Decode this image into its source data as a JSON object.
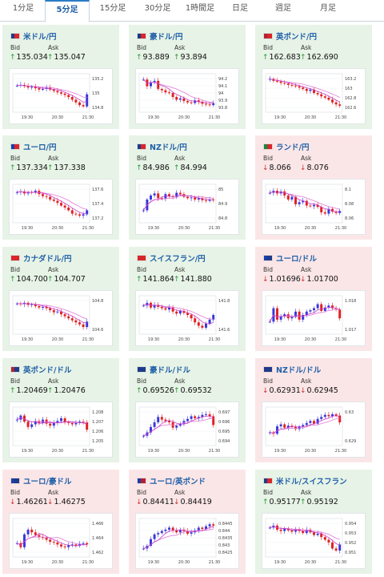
{
  "tabs": [
    {
      "label": "1分足",
      "active": false
    },
    {
      "label": "5分足",
      "active": true
    },
    {
      "label": "15分足",
      "active": false
    },
    {
      "label": "30分足",
      "active": false
    },
    {
      "label": "1時間足",
      "active": false
    },
    {
      "label": "日足",
      "active": false
    },
    {
      "label": "週足",
      "active": false
    },
    {
      "label": "月足",
      "active": false
    }
  ],
  "labels": {
    "bid": "Bid",
    "ask": "Ask"
  },
  "colors": {
    "up": "#2b9a3d",
    "down": "#d02f2f",
    "ma": "#c83cc8",
    "ma2": "#e07ad8",
    "bull": "#3838d8",
    "bear": "#e02020"
  },
  "x_ticks": [
    "19:30",
    "20:30",
    "21:30"
  ],
  "pairs": [
    {
      "name": "米ドル/円",
      "flags": [
        "#1f3b8c",
        "#d8262c"
      ],
      "direction": "up",
      "bid": "135.034",
      "ask": "135.047",
      "bid_dir": "up",
      "ask_dir": "up",
      "y_ticks": [
        "135.2",
        "135",
        "134.8"
      ],
      "shape": [
        0.72,
        0.74,
        0.7,
        0.66,
        0.68,
        0.64,
        0.6,
        0.62,
        0.66,
        0.6,
        0.56,
        0.52,
        0.48,
        0.44,
        0.38,
        0.3,
        0.22,
        0.14,
        0.1,
        0.46
      ]
    },
    {
      "name": "豪ドル/円",
      "flags": [
        "#1b3a8a",
        "#d8262c"
      ],
      "direction": "up",
      "bid": "93.889",
      "ask": "93.894",
      "bid_dir": "up",
      "ask_dir": "up",
      "y_ticks": [
        "94.2",
        "94.1",
        "94",
        "93.9",
        "93.8"
      ],
      "shape": [
        0.9,
        0.7,
        0.82,
        0.86,
        0.62,
        0.58,
        0.52,
        0.5,
        0.38,
        0.3,
        0.34,
        0.26,
        0.22,
        0.2,
        0.28,
        0.24,
        0.18,
        0.16,
        0.14,
        0.2
      ]
    },
    {
      "name": "英ポンド/円",
      "flags": [
        "#b22234",
        "#d8262c"
      ],
      "direction": "up",
      "bid": "162.683",
      "ask": "162.690",
      "bid_dir": "up",
      "ask_dir": "up",
      "y_ticks": [
        "163.2",
        "163",
        "162.8",
        "162.6"
      ],
      "shape": [
        0.92,
        0.86,
        0.84,
        0.8,
        0.78,
        0.74,
        0.72,
        0.7,
        0.66,
        0.62,
        0.56,
        0.6,
        0.5,
        0.46,
        0.4,
        0.36,
        0.3,
        0.22,
        0.16,
        0.12
      ]
    },
    {
      "name": "ユーロ/円",
      "flags": [
        "#1b3fa8",
        "#d8262c"
      ],
      "direction": "up",
      "bid": "137.334",
      "ask": "137.338",
      "bid_dir": "up",
      "ask_dir": "up",
      "y_ticks": [
        "137.6",
        "137.4",
        "137.2"
      ],
      "shape": [
        0.84,
        0.86,
        0.8,
        0.84,
        0.82,
        0.88,
        0.78,
        0.72,
        0.7,
        0.62,
        0.58,
        0.52,
        0.44,
        0.38,
        0.3,
        0.2,
        0.18,
        0.14,
        0.18,
        0.3
      ]
    },
    {
      "name": "NZドル/円",
      "flags": [
        "#1f3b8c",
        "#d8262c"
      ],
      "direction": "up",
      "bid": "84.986",
      "ask": "84.994",
      "bid_dir": "up",
      "ask_dir": "up",
      "y_ticks": [
        "85",
        "84.9",
        "84.8"
      ],
      "shape": [
        0.3,
        0.62,
        0.74,
        0.8,
        0.66,
        0.64,
        0.78,
        0.72,
        0.7,
        0.82,
        0.78,
        0.7,
        0.66,
        0.68,
        0.62,
        0.66,
        0.6,
        0.58,
        0.62,
        0.6
      ]
    },
    {
      "name": "ランド/円",
      "flags": [
        "#138a3c",
        "#d8262c"
      ],
      "direction": "down",
      "bid": "8.066",
      "ask": "8.076",
      "bid_dir": "down",
      "ask_dir": "down",
      "y_ticks": [
        "8.1",
        "8.08",
        "8.06"
      ],
      "shape": [
        0.82,
        0.88,
        0.8,
        0.86,
        0.74,
        0.62,
        0.7,
        0.48,
        0.54,
        0.58,
        0.44,
        0.42,
        0.46,
        0.4,
        0.24,
        0.2,
        0.34,
        0.26,
        0.22,
        0.28
      ]
    },
    {
      "name": "カナダドル/円",
      "flags": [
        "#d8262c",
        "#d8262c"
      ],
      "direction": "up",
      "bid": "104.700",
      "ask": "104.707",
      "bid_dir": "up",
      "ask_dir": "up",
      "y_ticks": [
        "104.8",
        "104.6"
      ],
      "shape": [
        0.84,
        0.82,
        0.86,
        0.8,
        0.82,
        0.76,
        0.72,
        0.74,
        0.7,
        0.64,
        0.58,
        0.6,
        0.52,
        0.46,
        0.4,
        0.34,
        0.28,
        0.22,
        0.14,
        0.3
      ]
    },
    {
      "name": "スイスフラン/円",
      "flags": [
        "#d8262c",
        "#d8262c"
      ],
      "direction": "up",
      "bid": "141.864",
      "ask": "141.880",
      "bid_dir": "up",
      "ask_dir": "up",
      "y_ticks": [
        "141.8",
        "141.6"
      ],
      "shape": [
        0.78,
        0.86,
        0.72,
        0.8,
        0.74,
        0.7,
        0.66,
        0.72,
        0.6,
        0.54,
        0.62,
        0.56,
        0.5,
        0.4,
        0.28,
        0.18,
        0.12,
        0.24,
        0.36,
        0.5
      ]
    },
    {
      "name": "ユーロ/ドル",
      "flags": [
        "#1b3fa8",
        "#1f3b8c"
      ],
      "direction": "down",
      "bid": "1.01696",
      "ask": "1.01700",
      "bid_dir": "down",
      "ask_dir": "down",
      "y_ticks": [
        "1.018",
        "1.017"
      ],
      "shape": [
        0.3,
        0.7,
        0.36,
        0.46,
        0.52,
        0.4,
        0.44,
        0.6,
        0.36,
        0.5,
        0.6,
        0.64,
        0.7,
        0.82,
        0.62,
        0.72,
        0.78,
        0.7,
        0.66,
        0.4
      ]
    },
    {
      "name": "英ポンド/ドル",
      "flags": [
        "#b22234",
        "#1f3b8c"
      ],
      "direction": "up",
      "bid": "1.20469",
      "ask": "1.20476",
      "bid_dir": "up",
      "ask_dir": "up",
      "y_ticks": [
        "1.208",
        "1.207",
        "1.206",
        "1.205"
      ],
      "shape": [
        0.7,
        0.82,
        0.64,
        0.48,
        0.56,
        0.66,
        0.6,
        0.7,
        0.58,
        0.52,
        0.6,
        0.66,
        0.74,
        0.62,
        0.6,
        0.56,
        0.6,
        0.64,
        0.62,
        0.4
      ]
    },
    {
      "name": "豪ドル/ドル",
      "flags": [
        "#1b3a8a",
        "#1f3b8c"
      ],
      "direction": "up",
      "bid": "0.69526",
      "ask": "0.69532",
      "bid_dir": "up",
      "ask_dir": "up",
      "y_ticks": [
        "0.697",
        "0.696",
        "0.695",
        "0.694"
      ],
      "shape": [
        0.22,
        0.32,
        0.48,
        0.62,
        0.78,
        0.7,
        0.66,
        0.62,
        0.46,
        0.52,
        0.58,
        0.66,
        0.72,
        0.8,
        0.74,
        0.78,
        0.84,
        0.86,
        0.8,
        0.54
      ]
    },
    {
      "name": "NZドル/ドル",
      "flags": [
        "#1f3b8c",
        "#1f3b8c"
      ],
      "direction": "down",
      "bid": "0.62931",
      "ask": "0.62945",
      "bid_dir": "down",
      "ask_dir": "down",
      "y_ticks": [
        "0.63",
        "0.629"
      ],
      "shape": [
        0.32,
        0.28,
        0.5,
        0.56,
        0.46,
        0.52,
        0.48,
        0.42,
        0.5,
        0.54,
        0.6,
        0.66,
        0.58,
        0.72,
        0.78,
        0.84,
        0.8,
        0.86,
        0.82,
        0.62
      ]
    },
    {
      "name": "ユーロ/豪ドル",
      "flags": [
        "#1b3fa8",
        "#1b3a8a"
      ],
      "direction": "down",
      "bid": "1.46261",
      "ask": "1.46275",
      "bid_dir": "down",
      "ask_dir": "down",
      "y_ticks": [
        "1.466",
        "1.464",
        "1.462"
      ],
      "shape": [
        0.34,
        0.22,
        0.6,
        0.74,
        0.66,
        0.58,
        0.52,
        0.5,
        0.44,
        0.38,
        0.36,
        0.3,
        0.24,
        0.22,
        0.28,
        0.3,
        0.26,
        0.32,
        0.34,
        0.3
      ]
    },
    {
      "name": "ユーロ/英ポンド",
      "flags": [
        "#1b3fa8",
        "#b22234"
      ],
      "direction": "down",
      "bid": "0.84411",
      "ask": "0.84419",
      "bid_dir": "down",
      "ask_dir": "down",
      "y_ticks": [
        "0.8445",
        "0.844",
        "0.8435",
        "0.843",
        "0.8425"
      ],
      "shape": [
        0.18,
        0.26,
        0.46,
        0.6,
        0.64,
        0.7,
        0.74,
        0.8,
        0.72,
        0.66,
        0.74,
        0.7,
        0.62,
        0.66,
        0.72,
        0.8,
        0.76,
        0.84,
        0.9,
        0.86
      ]
    },
    {
      "name": "米ドル/スイスフラン",
      "flags": [
        "#1f3b8c",
        "#d8262c"
      ],
      "direction": "up",
      "bid": "0.95177",
      "ask": "0.95192",
      "bid_dir": "up",
      "ask_dir": "up",
      "y_ticks": [
        "0.954",
        "0.953",
        "0.952",
        "0.951"
      ],
      "shape": [
        0.8,
        0.86,
        0.74,
        0.7,
        0.78,
        0.72,
        0.68,
        0.76,
        0.7,
        0.64,
        0.74,
        0.66,
        0.58,
        0.62,
        0.52,
        0.44,
        0.36,
        0.18,
        0.12,
        0.3
      ]
    }
  ]
}
